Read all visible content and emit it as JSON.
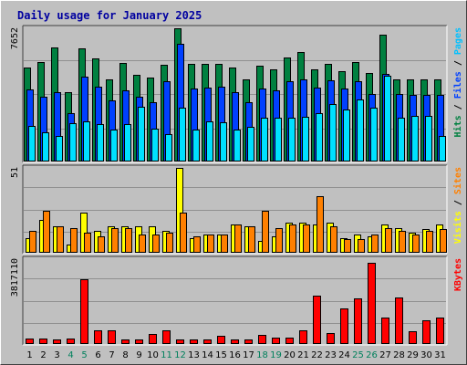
{
  "chart_data": {
    "type": "bar",
    "title": "Daily usage for January 2025",
    "categories": [
      "1",
      "2",
      "3",
      "4",
      "5",
      "6",
      "7",
      "8",
      "9",
      "10",
      "11",
      "12",
      "13",
      "14",
      "15",
      "16",
      "17",
      "18",
      "19",
      "20",
      "21",
      "22",
      "23",
      "24",
      "25",
      "26",
      "27",
      "28",
      "29",
      "30",
      "31"
    ],
    "weekend_days": [
      "4",
      "5",
      "11",
      "12",
      "18",
      "19",
      "25",
      "26"
    ],
    "panels": [
      {
        "name": "hits-files-pages",
        "max_label": "7652",
        "ylim": [
          0,
          7652
        ],
        "series": [
          {
            "name": "Hits",
            "color": "#008040",
            "values": [
              5400,
              5700,
              6550,
              3990,
              6490,
              5900,
              4700,
              5650,
              5000,
              4800,
              5550,
              7650,
              5600,
              5600,
              5600,
              5400,
              4700,
              5500,
              5300,
              5950,
              6300,
              5300,
              5600,
              5200,
              5700,
              5100,
              7300,
              4700,
              4700,
              4700,
              4700
            ]
          },
          {
            "name": "Files",
            "color": "#0040ff",
            "values": [
              4150,
              3700,
              4000,
              2800,
              4900,
              4300,
              3500,
              4100,
              3700,
              3400,
              4600,
              6750,
              4200,
              4250,
              4300,
              4000,
              3400,
              4200,
              4100,
              4600,
              4700,
              4250,
              4650,
              4200,
              4600,
              3900,
              5050,
              3900,
              3850,
              3800,
              3800
            ]
          },
          {
            "name": "Pages",
            "color": "#00e0ff",
            "values": [
              2070,
              1700,
              1450,
              2200,
              2300,
              2150,
              1850,
              2130,
              3150,
              1870,
              1550,
              3080,
              1820,
              2300,
              2250,
              1850,
              2000,
              2500,
              2500,
              2500,
              2550,
              2800,
              3300,
              3000,
              3550,
              3100,
              4950,
              2500,
              2600,
              2600,
              1450
            ]
          }
        ]
      },
      {
        "name": "sites-visits",
        "max_label": "51",
        "ylim": [
          0,
          51
        ],
        "series": [
          {
            "name": "Sites",
            "color": "#ffff00",
            "values": [
              9,
              20,
              16,
              5,
              24,
              13,
              16,
              16,
              16,
              16,
              13,
              51,
              9,
              11,
              11,
              17,
              16,
              7,
              10,
              18,
              18,
              17,
              18,
              9,
              11,
              10,
              17,
              15,
              12,
              14,
              17
            ]
          },
          {
            "name": "Visits",
            "color": "#ff8000",
            "values": [
              13,
              25,
              16,
              15,
              12,
              10,
              15,
              15,
              11,
              11,
              12,
              24,
              10,
              11,
              11,
              17,
              16,
              25,
              15,
              17,
              17,
              34,
              16,
              8,
              8,
              11,
              15,
              13,
              11,
              13,
              14
            ]
          }
        ]
      },
      {
        "name": "kbytes",
        "max_label": "3817110",
        "ylim": [
          0,
          3817110
        ],
        "series": [
          {
            "name": "KBytes",
            "color": "#ff0000",
            "values": [
              250000,
              240000,
              210000,
              250000,
              2900000,
              600000,
              630000,
              190000,
              200000,
              450000,
              630000,
              200000,
              200000,
              190000,
              350000,
              200000,
              200000,
              390000,
              270000,
              290000,
              600000,
              2180000,
              500000,
              1600000,
              2040000,
              3650000,
              1190000,
              2080000,
              580000,
              1060000,
              1210000
            ]
          }
        ]
      }
    ],
    "right_labels": {
      "top": [
        {
          "text": "Pages",
          "color": "#00c0ff"
        },
        {
          "text": " / ",
          "color": "#000000"
        },
        {
          "text": "Files",
          "color": "#0040ff"
        },
        {
          "text": " / ",
          "color": "#000000"
        },
        {
          "text": "Hits",
          "color": "#008040"
        }
      ],
      "middle": [
        {
          "text": "Sites",
          "color": "#ff8000"
        },
        {
          "text": " / ",
          "color": "#000000"
        },
        {
          "text": "Visits",
          "color": "#ffff00"
        }
      ],
      "bottom": [
        {
          "text": "KBytes",
          "color": "#ff0000"
        }
      ]
    },
    "colors": {
      "title": "#0000a0",
      "background": "#c0c0c0",
      "grid": "#909090",
      "weekday_label": "#000000",
      "weekend_label": "#00805c"
    }
  }
}
